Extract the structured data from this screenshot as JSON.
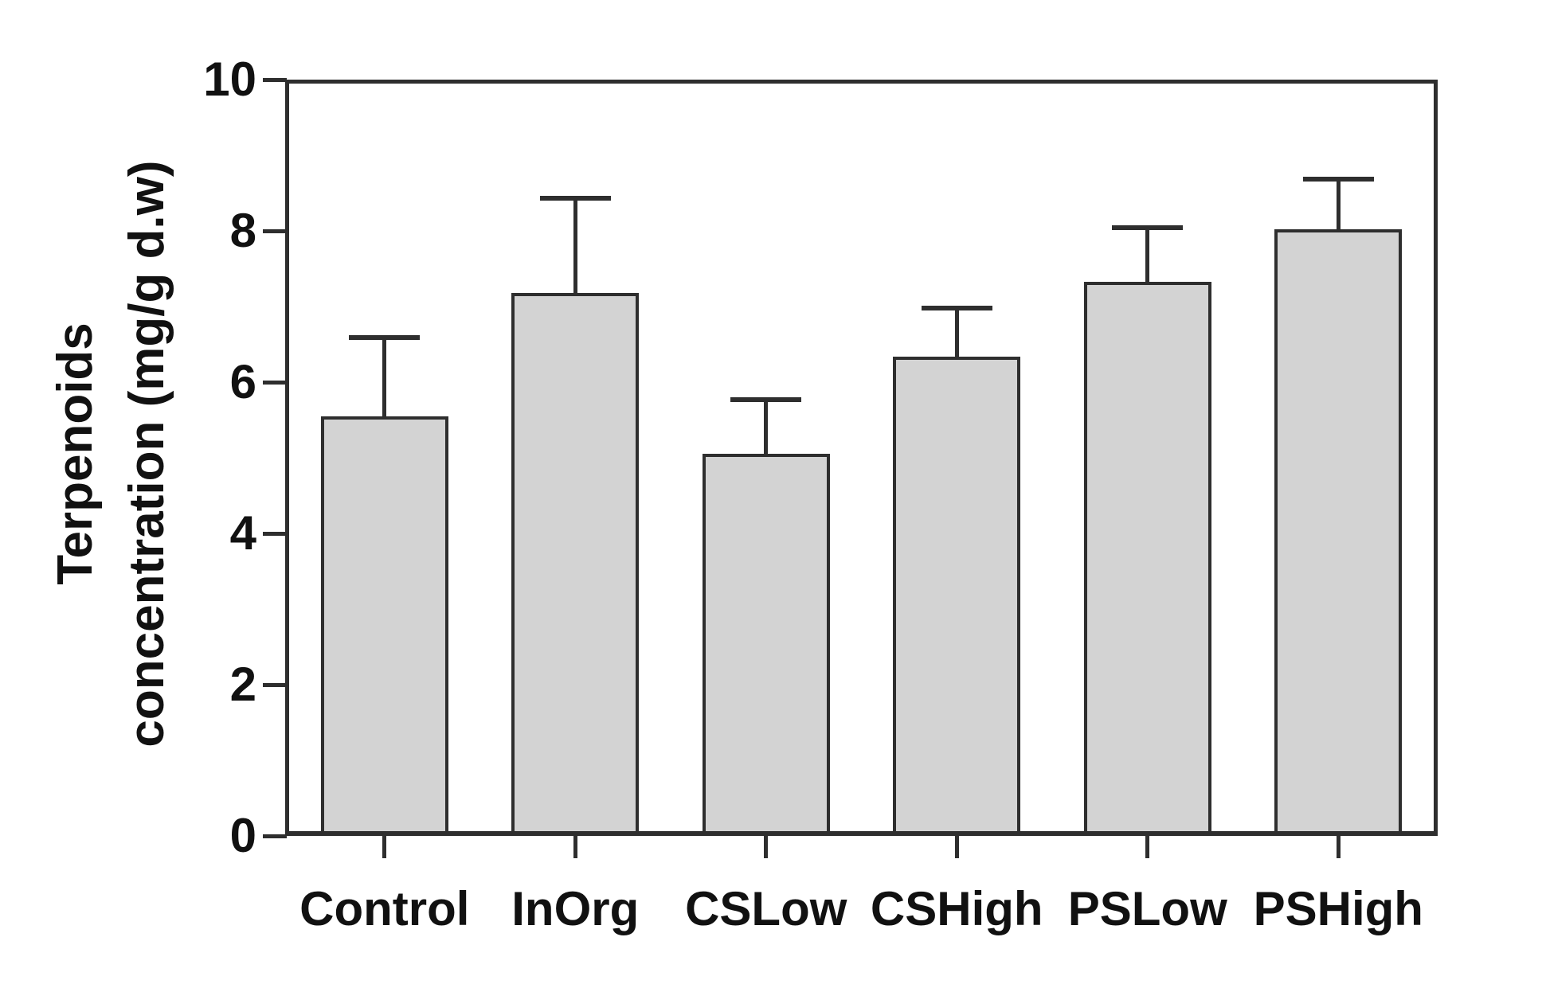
{
  "figure": {
    "background": "#ffffff"
  },
  "chart_data": {
    "type": "bar",
    "title": "",
    "categories": [
      "Control",
      "InOrg",
      "CSLow",
      "CSHigh",
      "PSLow",
      "PSHigh"
    ],
    "values": [
      5.55,
      7.2,
      5.05,
      6.35,
      7.35,
      8.05
    ],
    "errors_upper": [
      1.08,
      1.3,
      0.75,
      0.68,
      0.75,
      0.7
    ],
    "error_cap_values": [
      6.63,
      8.5,
      5.8,
      7.03,
      8.1,
      8.75
    ],
    "xlabel": "",
    "ylabel": "Terpenoids concentration (mg/g d.w)",
    "ylabel_line1": "Terpenoids",
    "ylabel_line2": "concentration (mg/g d.w)",
    "ylim": [
      0,
      10
    ],
    "yticks": [
      0,
      2,
      4,
      6,
      8,
      10
    ],
    "grid": false,
    "legend": null,
    "bar_fill_color": "#d3d3d3",
    "line_color": "#2e2e2e",
    "text_color": "#111111"
  }
}
